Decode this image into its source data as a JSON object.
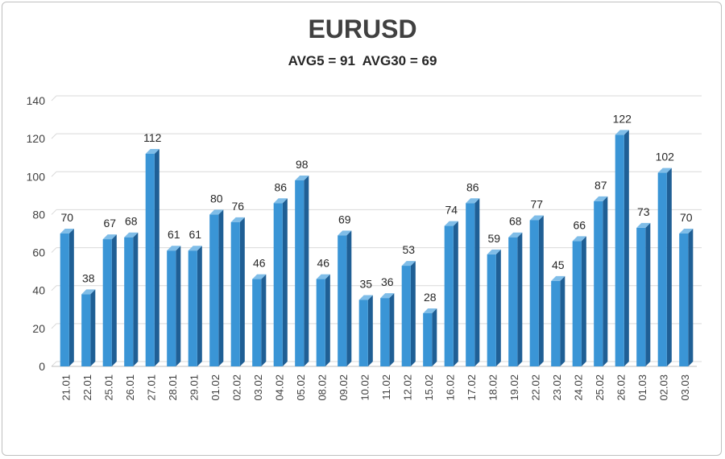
{
  "header": {
    "title": "EURUSD",
    "avg5_label": "AVG5 = 91",
    "avg30_label": "AVG30 = 69"
  },
  "chart_data": {
    "type": "bar",
    "title": "EURUSD",
    "subtitle": "AVG5 = 91 AVG30 = 69",
    "xlabel": "",
    "ylabel": "",
    "categories": [
      "21.01",
      "22.01",
      "25.01",
      "26.01",
      "27.01",
      "28.01",
      "29.01",
      "01.02",
      "02.02",
      "03.02",
      "04.02",
      "05.02",
      "08.02",
      "09.02",
      "10.02",
      "11.02",
      "12.02",
      "15.02",
      "16.02",
      "17.02",
      "18.02",
      "19.02",
      "22.02",
      "23.02",
      "24.02",
      "25.02",
      "26.02",
      "01.03",
      "02.03",
      "03.03"
    ],
    "values": [
      70,
      38,
      67,
      68,
      112,
      61,
      61,
      80,
      76,
      46,
      86,
      98,
      46,
      69,
      35,
      36,
      53,
      28,
      74,
      86,
      59,
      68,
      77,
      45,
      66,
      87,
      122,
      73,
      102,
      70
    ],
    "ylim": [
      0,
      140
    ],
    "yticks": [
      0,
      20,
      40,
      60,
      80,
      100,
      120,
      140
    ],
    "grid": true,
    "legend": "none",
    "colors": {
      "bar_front": "#3a95d6",
      "bar_side": "#1f5f95",
      "bar_top": "#7fbde8",
      "grid": "#d9d9d9"
    }
  }
}
